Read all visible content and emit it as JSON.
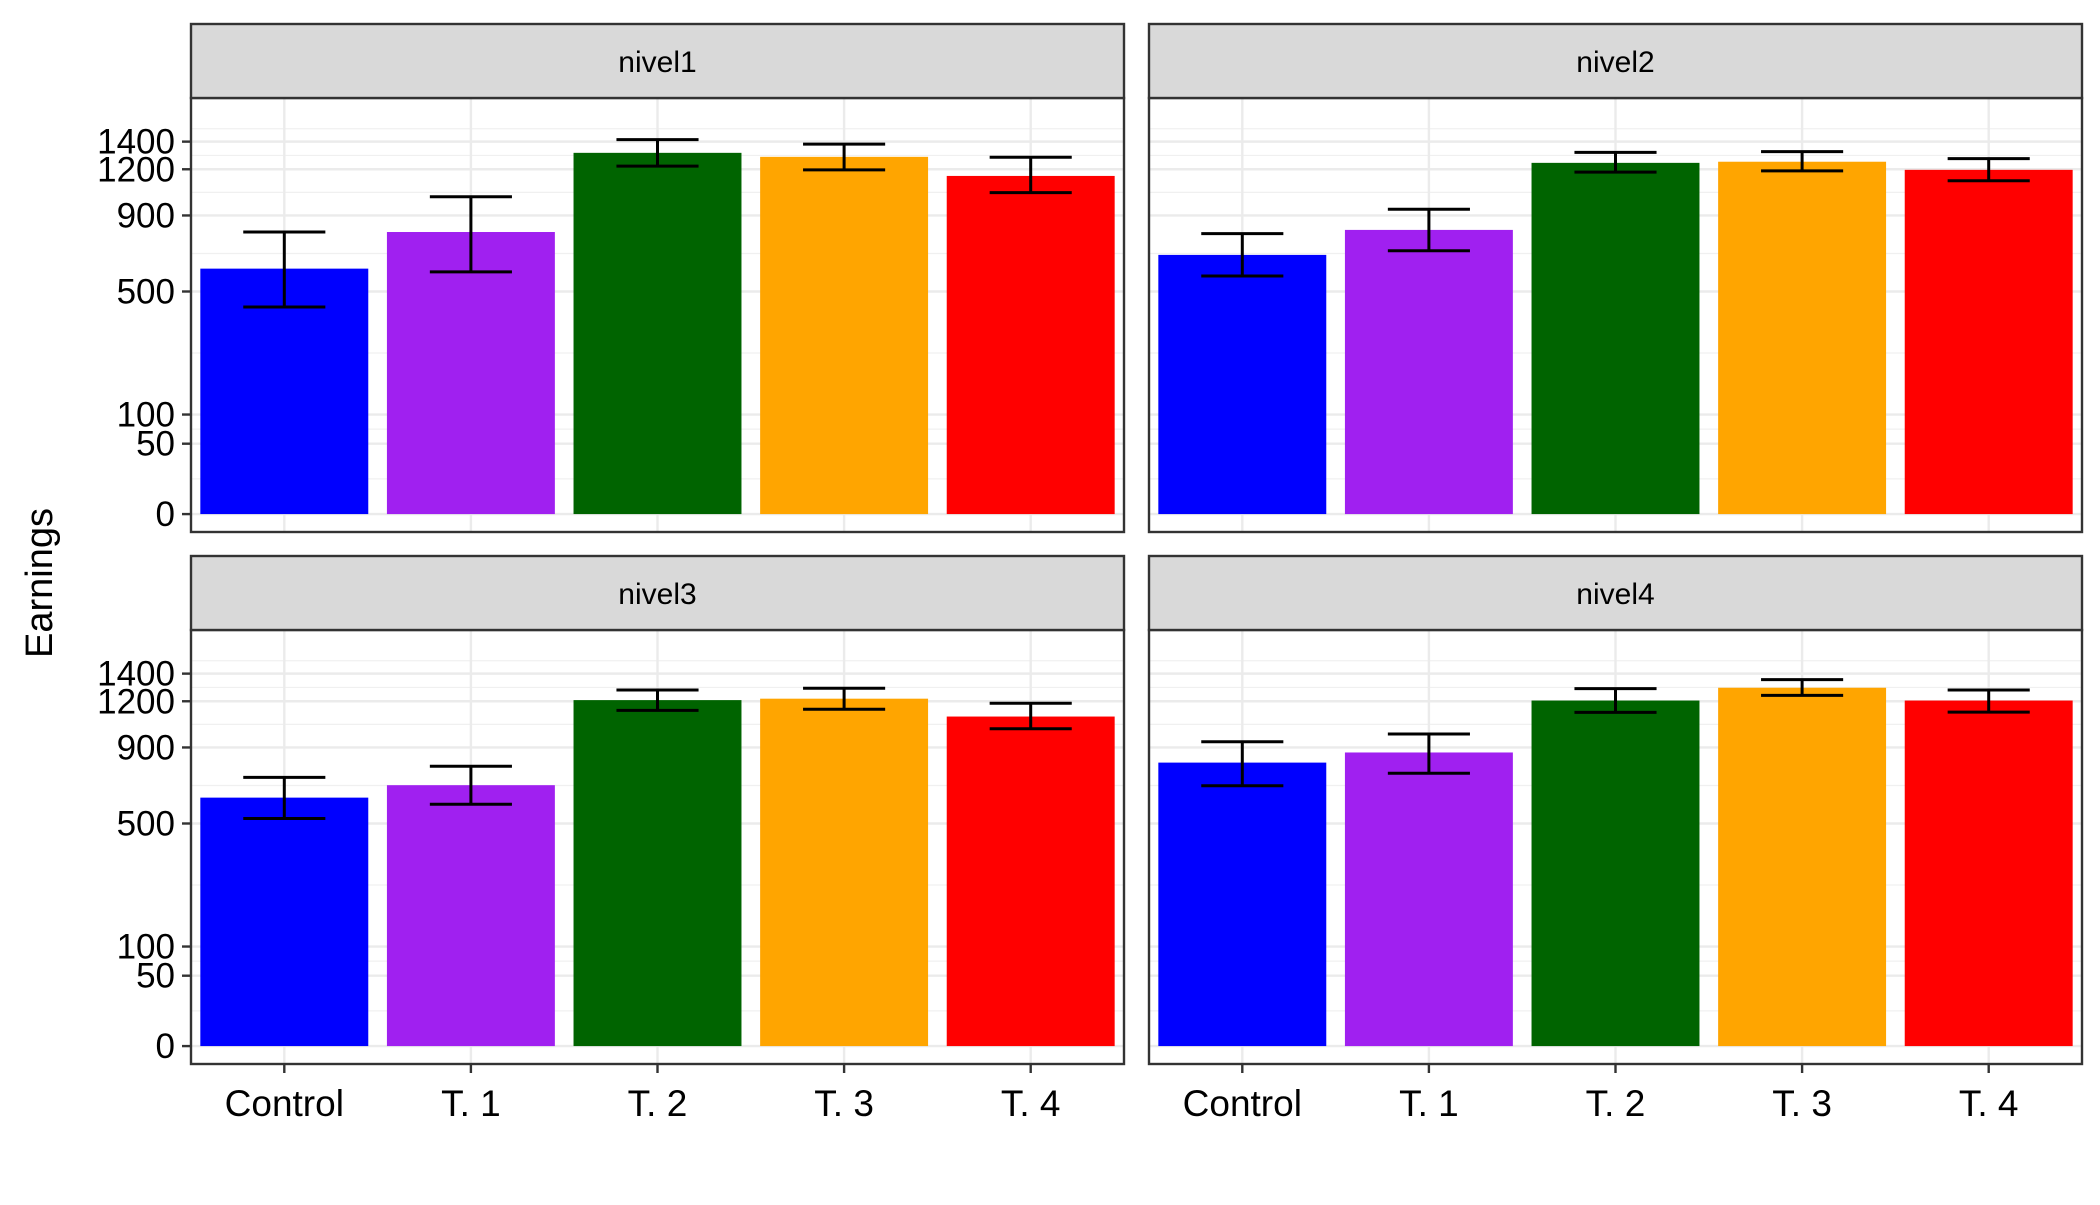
{
  "chart_data": {
    "type": "bar",
    "ylabel": "Earnings",
    "xlabel": "",
    "categories": [
      "Control",
      "T. 1",
      "T. 2",
      "T. 3",
      "T. 4"
    ],
    "colors": [
      "#0000FF",
      "#A020F0",
      "#006400",
      "#FFA500",
      "#FF0000"
    ],
    "y_scale": "sqrt",
    "ylim": [
      0,
      1600
    ],
    "yticks": [
      0,
      50,
      100,
      500,
      900,
      1200,
      1400
    ],
    "ytick_labels": [
      "0",
      "50",
      "100",
      "500",
      "900",
      "1200",
      "1400"
    ],
    "grid": true,
    "legend": "none",
    "panels": [
      {
        "name": "nivel1",
        "values": [
          608,
          803,
          1317,
          1288,
          1154
        ],
        "error_low": [
          433,
          592,
          1222,
          1196,
          1043
        ],
        "error_high": [
          803,
          1016,
          1415,
          1381,
          1285
        ]
      },
      {
        "name": "nivel2",
        "values": [
          678,
          815,
          1245,
          1253,
          1196
        ],
        "error_low": [
          572,
          700,
          1180,
          1189,
          1121
        ],
        "error_high": [
          794,
          938,
          1320,
          1326,
          1275
        ]
      },
      {
        "name": "nivel3",
        "values": [
          623,
          687,
          1208,
          1218,
          1096
        ],
        "error_low": [
          523,
          590,
          1137,
          1145,
          1016
        ],
        "error_high": [
          729,
          790,
          1280,
          1292,
          1186
        ]
      },
      {
        "name": "nivel4",
        "values": [
          811,
          870,
          1205,
          1296,
          1205
        ],
        "error_low": [
          684,
          751,
          1124,
          1241,
          1126
        ],
        "error_high": [
          935,
          983,
          1290,
          1355,
          1280
        ]
      }
    ]
  }
}
